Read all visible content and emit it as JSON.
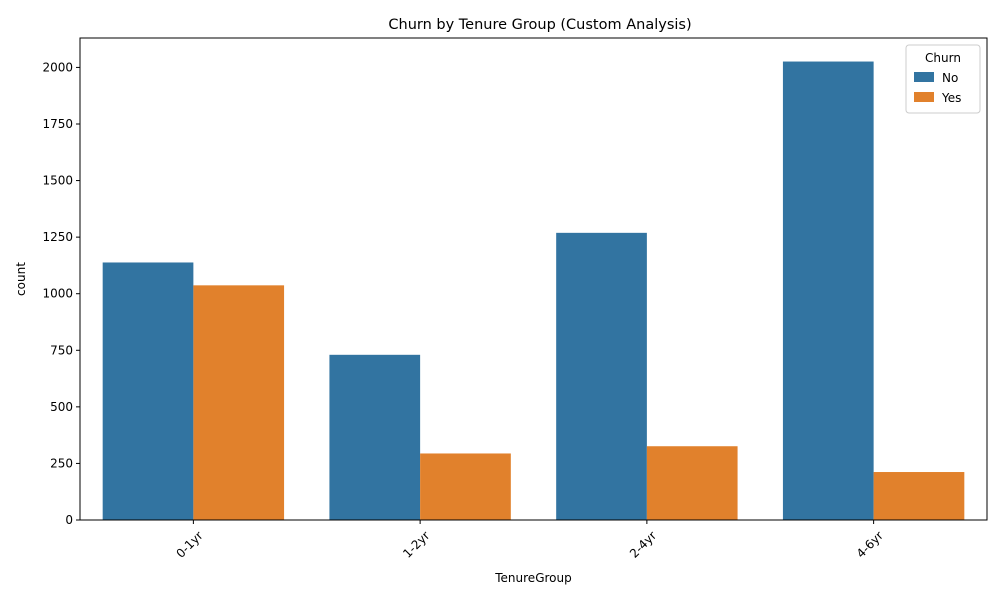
{
  "chart_data": {
    "type": "bar",
    "title": "Churn by Tenure Group (Custom Analysis)",
    "xlabel": "TenureGroup",
    "ylabel": "count",
    "categories": [
      "0-1yr",
      "1-2yr",
      "2-4yr",
      "4-6yr"
    ],
    "series": [
      {
        "name": "No",
        "color": "#3274a1",
        "values": [
          1138,
          730,
          1269,
          2026
        ]
      },
      {
        "name": "Yes",
        "color": "#e1812c",
        "values": [
          1037,
          294,
          326,
          212
        ]
      }
    ],
    "ylim": [
      0,
      2130
    ],
    "yticks": [
      0,
      250,
      500,
      750,
      1000,
      1250,
      1500,
      1750,
      2000
    ],
    "grid": false,
    "legend": {
      "title": "Churn",
      "position": "top-right"
    }
  }
}
